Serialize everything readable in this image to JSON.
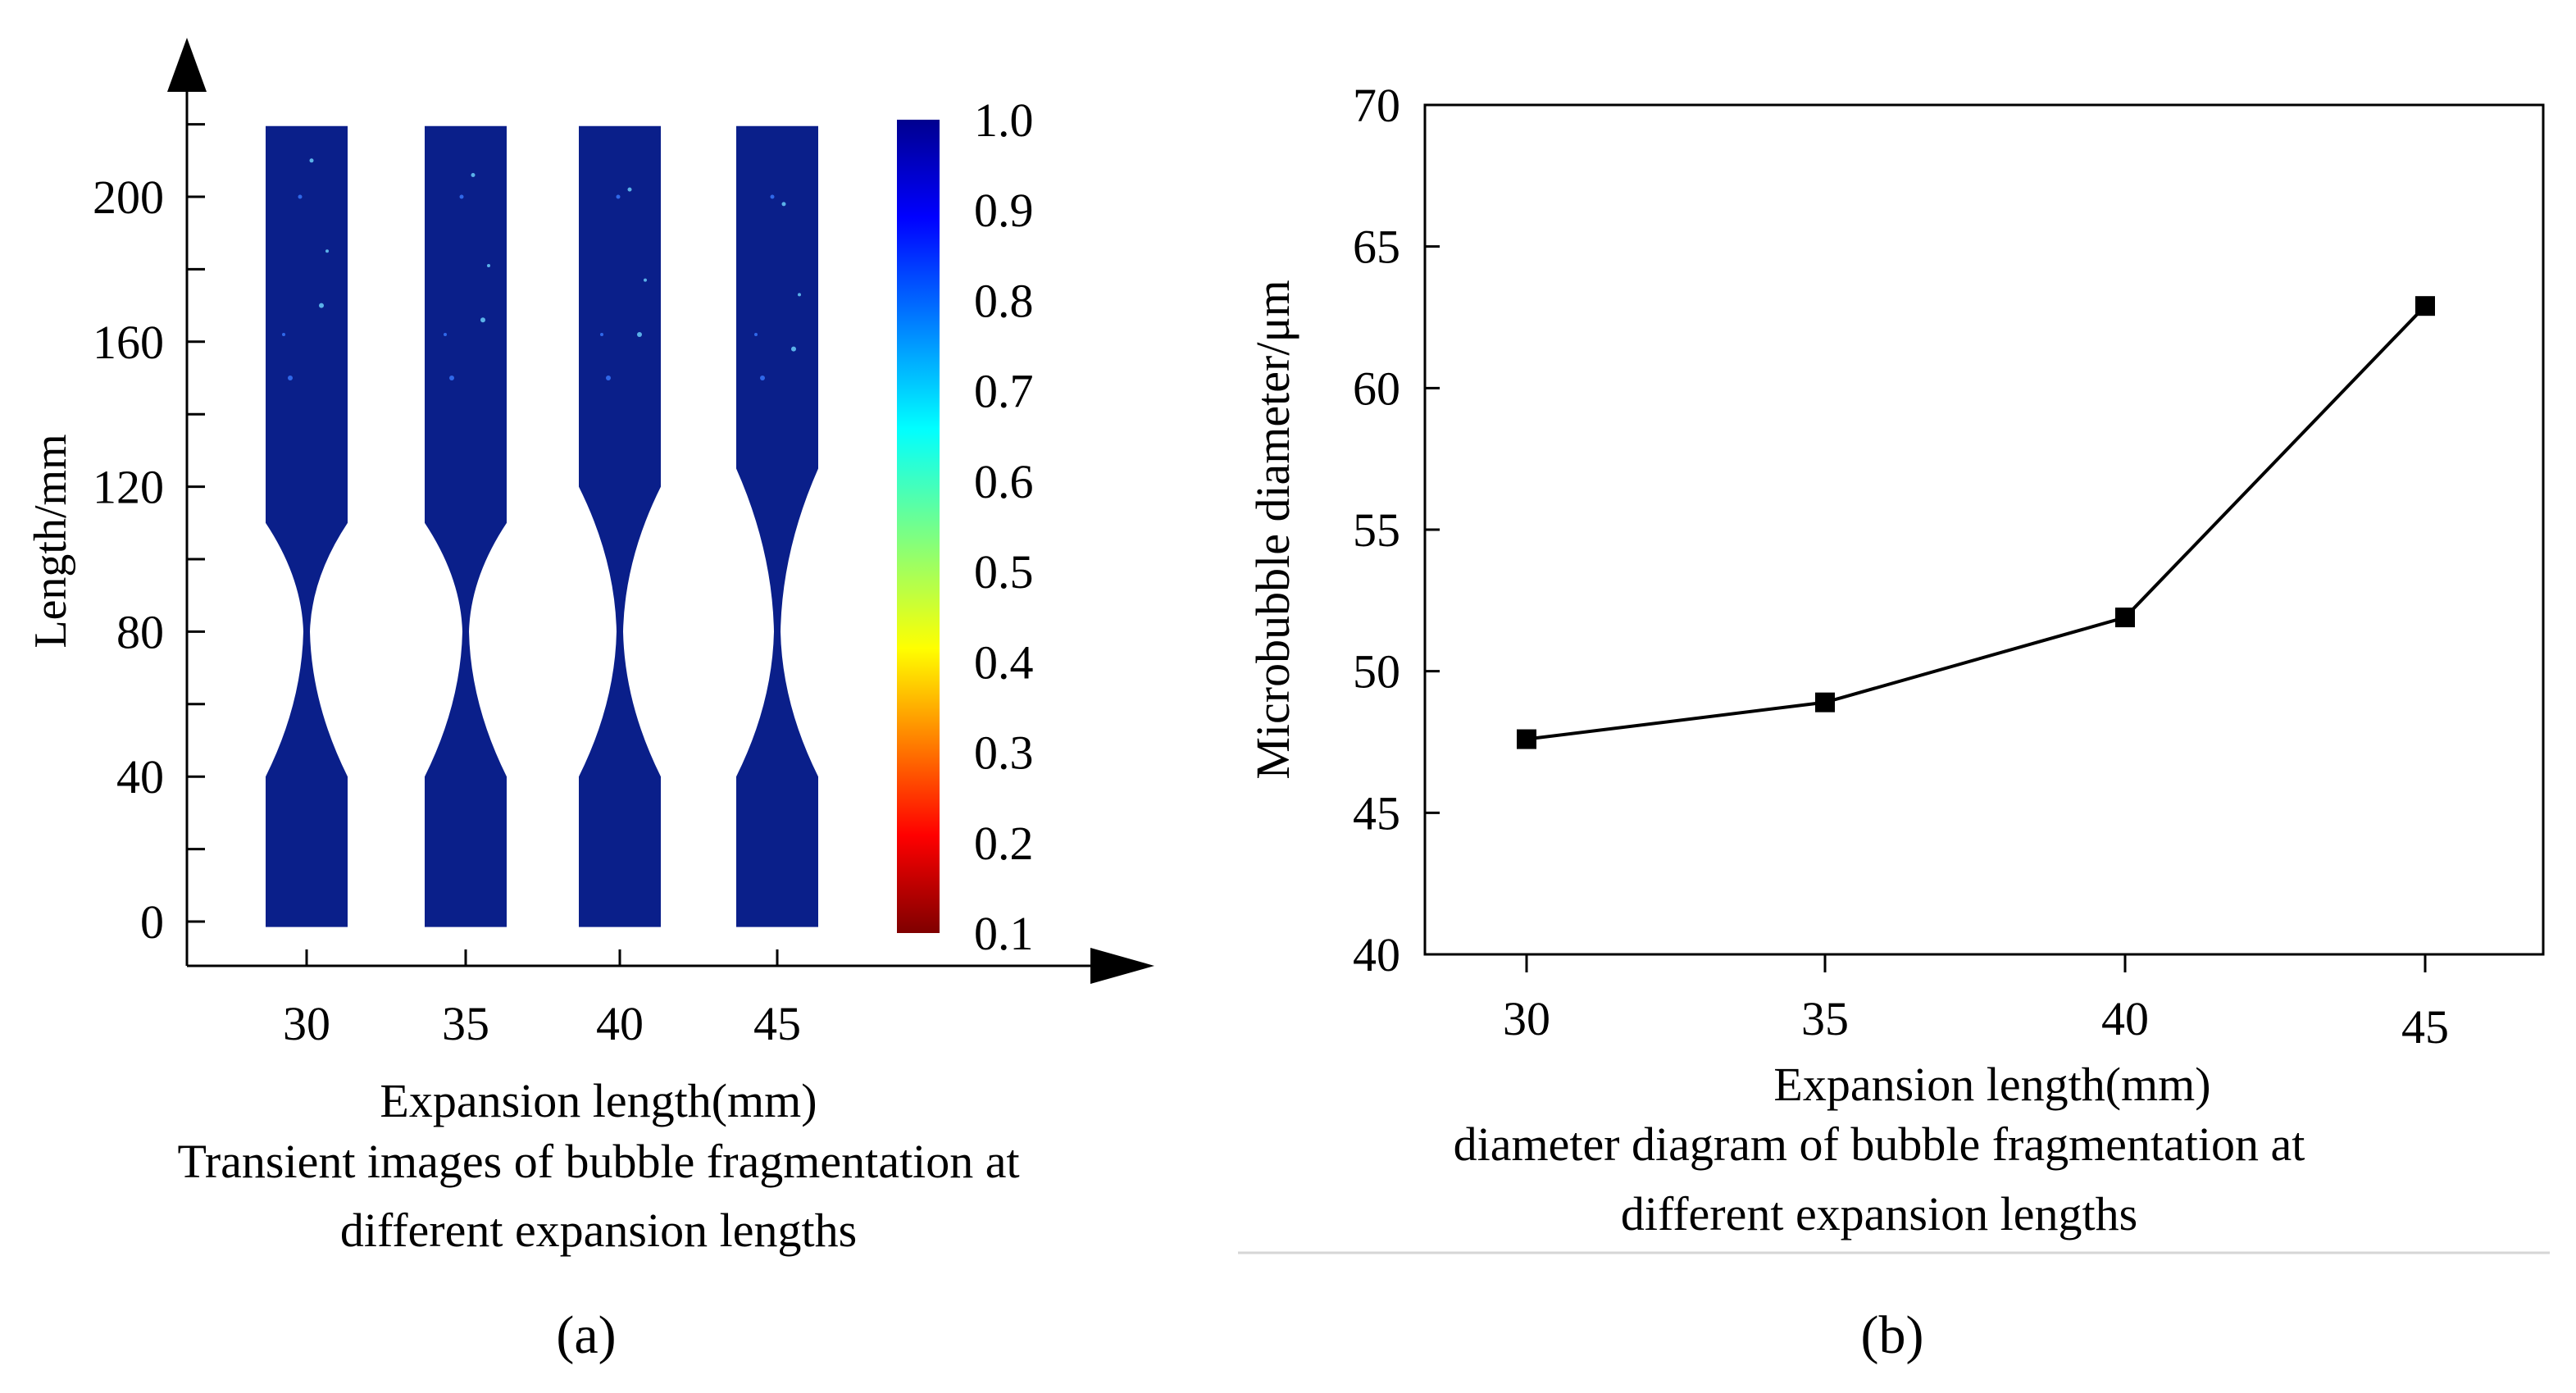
{
  "panel_a": {
    "chart_data": {
      "type": "heatmap",
      "ylabel": "Length/mm",
      "xlabel": "Expansion length(mm)",
      "caption": "Transient images of bubble fragmentation at different expansion lengths",
      "categories": [
        "30",
        "35",
        "40",
        "45"
      ],
      "yticks": [
        0,
        40,
        80,
        120,
        160,
        200
      ],
      "ylim": [
        0,
        220
      ],
      "colorbar_ticks": [
        "1.0",
        "0.9",
        "0.8",
        "0.7",
        "0.6",
        "0.5",
        "0.4",
        "0.3",
        "0.2",
        "0.1"
      ],
      "colorbar_range": [
        0.1,
        1.0
      ],
      "channel_color": "#0a1f8a",
      "contraction_start": [
        110,
        110,
        120,
        125
      ],
      "throat": 80
    },
    "letter": "(a)"
  },
  "panel_b": {
    "chart_data": {
      "type": "line",
      "ylabel": "Microbubble diameter/μm",
      "xlabel": "Expansion length(mm)",
      "caption_line1": "diameter diagram of bubble fragmentation at",
      "caption_line2": "different expansion lengths",
      "x": [
        30,
        35,
        40,
        45
      ],
      "xticks": [
        "30",
        "35",
        "40",
        "45"
      ],
      "yticks": [
        40,
        45,
        50,
        55,
        60,
        65,
        70
      ],
      "ylim": [
        40,
        70
      ],
      "series": [
        {
          "values": [
            47.6,
            48.9,
            51.9,
            62.9
          ]
        }
      ]
    },
    "letter": "(b)"
  }
}
